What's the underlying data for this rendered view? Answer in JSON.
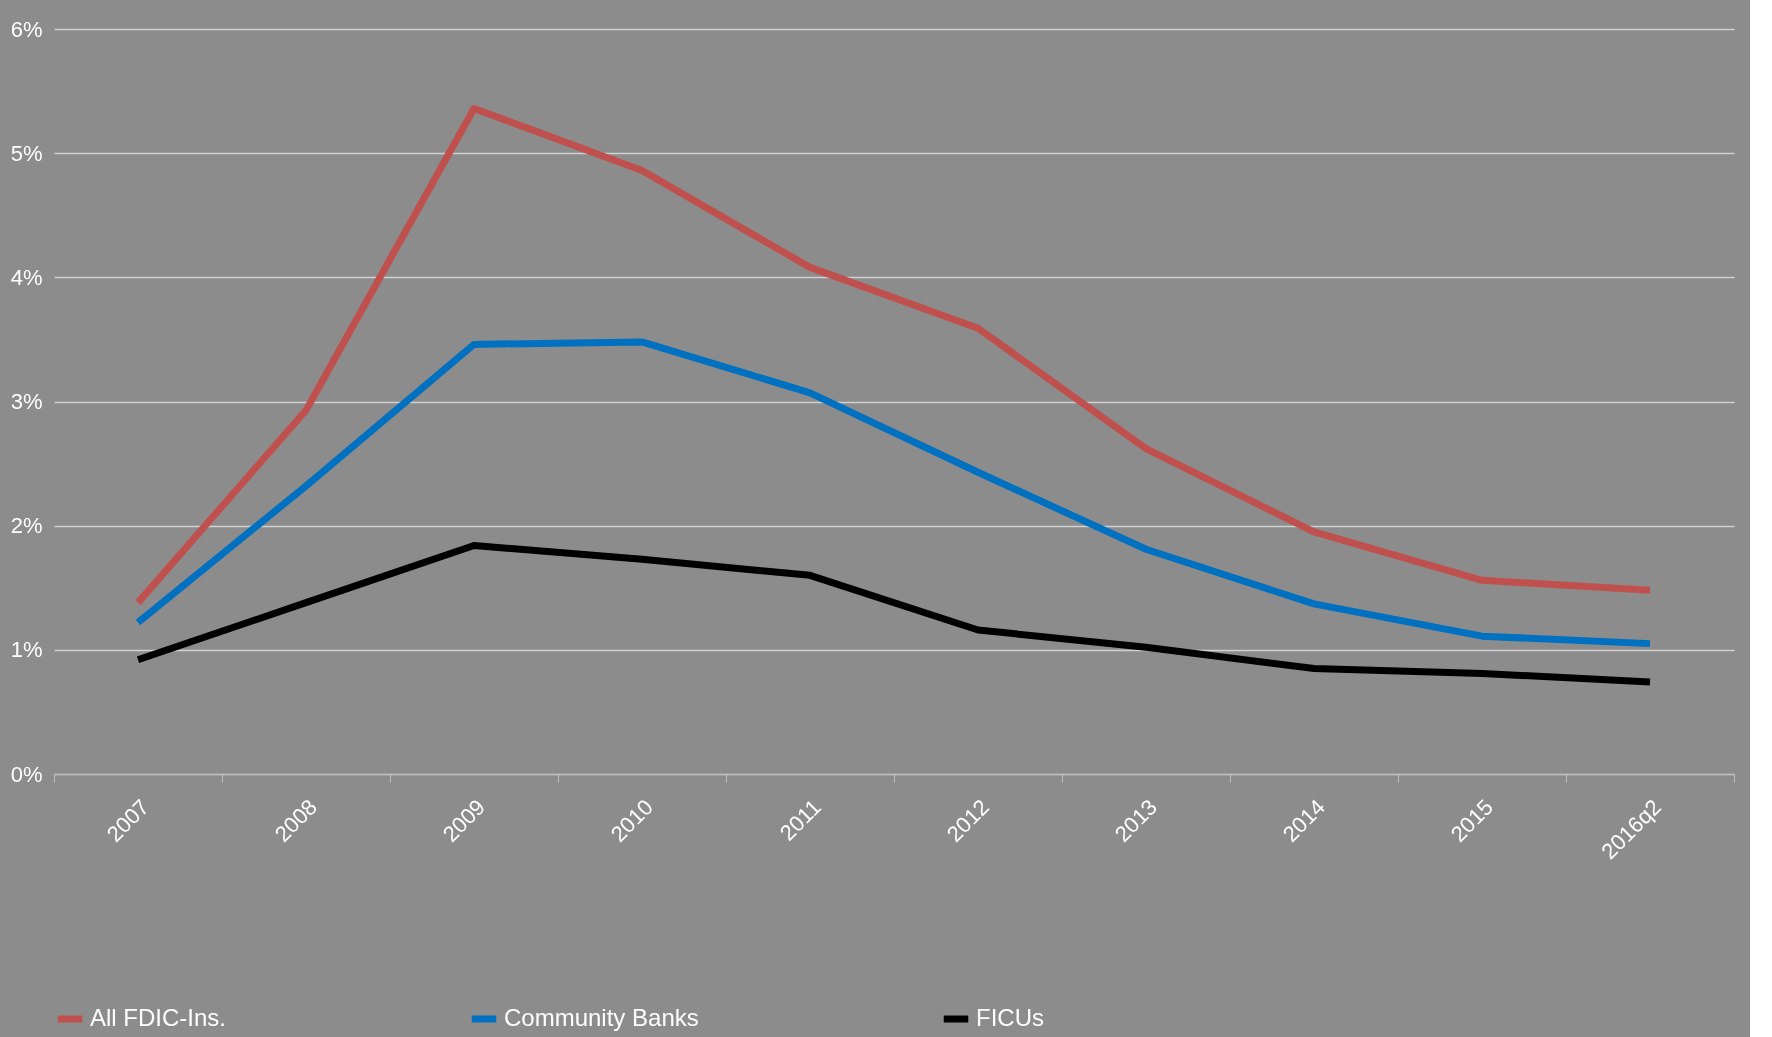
{
  "chart_data": {
    "type": "line",
    "categories": [
      "2007",
      "2008",
      "2009",
      "2010",
      "2011",
      "2012",
      "2013",
      "2014",
      "2015",
      "2016q2"
    ],
    "series": [
      {
        "name": "All FDIC-Ins.",
        "color": "#c0504d",
        "values": [
          1.38,
          2.93,
          5.36,
          4.86,
          4.08,
          3.59,
          2.62,
          1.95,
          1.56,
          1.48
        ]
      },
      {
        "name": "Community Banks",
        "color": "#0070c0",
        "values": [
          1.22,
          2.32,
          3.46,
          3.48,
          3.07,
          2.43,
          1.81,
          1.37,
          1.11,
          1.05
        ]
      },
      {
        "name": "FICUs",
        "color": "#000000",
        "values": [
          0.92,
          1.38,
          1.84,
          1.73,
          1.6,
          1.16,
          1.02,
          0.85,
          0.81,
          0.74
        ]
      }
    ],
    "ylim": [
      0,
      6
    ],
    "yticks": [
      {
        "value": 0,
        "label": "0%"
      },
      {
        "value": 1,
        "label": "1%"
      },
      {
        "value": 2,
        "label": "2%"
      },
      {
        "value": 3,
        "label": "3%"
      },
      {
        "value": 4,
        "label": "4%"
      },
      {
        "value": 5,
        "label": "5%"
      },
      {
        "value": 6,
        "label": "6%"
      }
    ],
    "grid": "y",
    "legend": "bottom",
    "marker": "none",
    "line_style": "solid"
  }
}
